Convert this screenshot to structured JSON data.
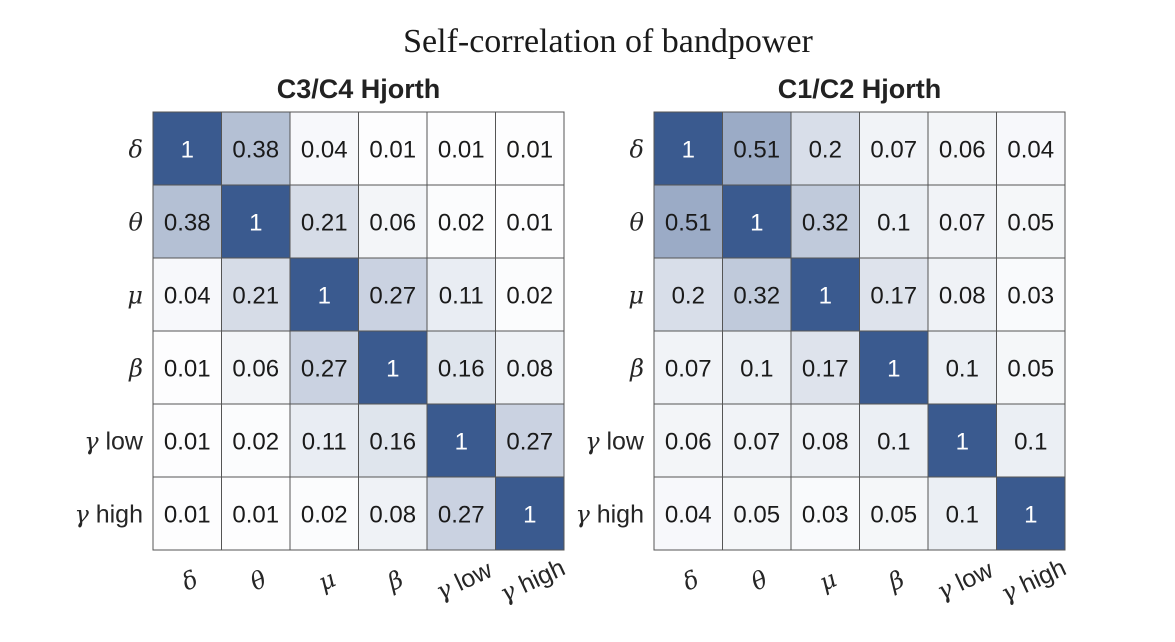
{
  "chart_data": {
    "type": "heatmap",
    "title": "Self-correlation of bandpower",
    "low_color": "#ffffff",
    "high_color": "#3a5a8f",
    "labels": [
      "δ",
      "θ",
      "μ",
      "β",
      "γ low",
      "γ high"
    ],
    "panels": [
      {
        "title": "C3/C4 Hjorth",
        "values": [
          [
            1,
            0.38,
            0.04,
            0.01,
            0.01,
            0.01
          ],
          [
            0.38,
            1,
            0.21,
            0.06,
            0.02,
            0.01
          ],
          [
            0.04,
            0.21,
            1,
            0.27,
            0.11,
            0.02
          ],
          [
            0.01,
            0.06,
            0.27,
            1,
            0.16,
            0.08
          ],
          [
            0.01,
            0.02,
            0.11,
            0.16,
            1,
            0.27
          ],
          [
            0.01,
            0.01,
            0.02,
            0.08,
            0.27,
            1
          ]
        ]
      },
      {
        "title": "C1/C2 Hjorth",
        "values": [
          [
            1,
            0.51,
            0.2,
            0.07,
            0.06,
            0.04
          ],
          [
            0.51,
            1,
            0.32,
            0.1,
            0.07,
            0.05
          ],
          [
            0.2,
            0.32,
            1,
            0.17,
            0.08,
            0.03
          ],
          [
            0.07,
            0.1,
            0.17,
            1,
            0.1,
            0.05
          ],
          [
            0.06,
            0.07,
            0.08,
            0.1,
            1,
            0.1
          ],
          [
            0.04,
            0.05,
            0.03,
            0.05,
            0.1,
            1
          ]
        ]
      }
    ]
  }
}
